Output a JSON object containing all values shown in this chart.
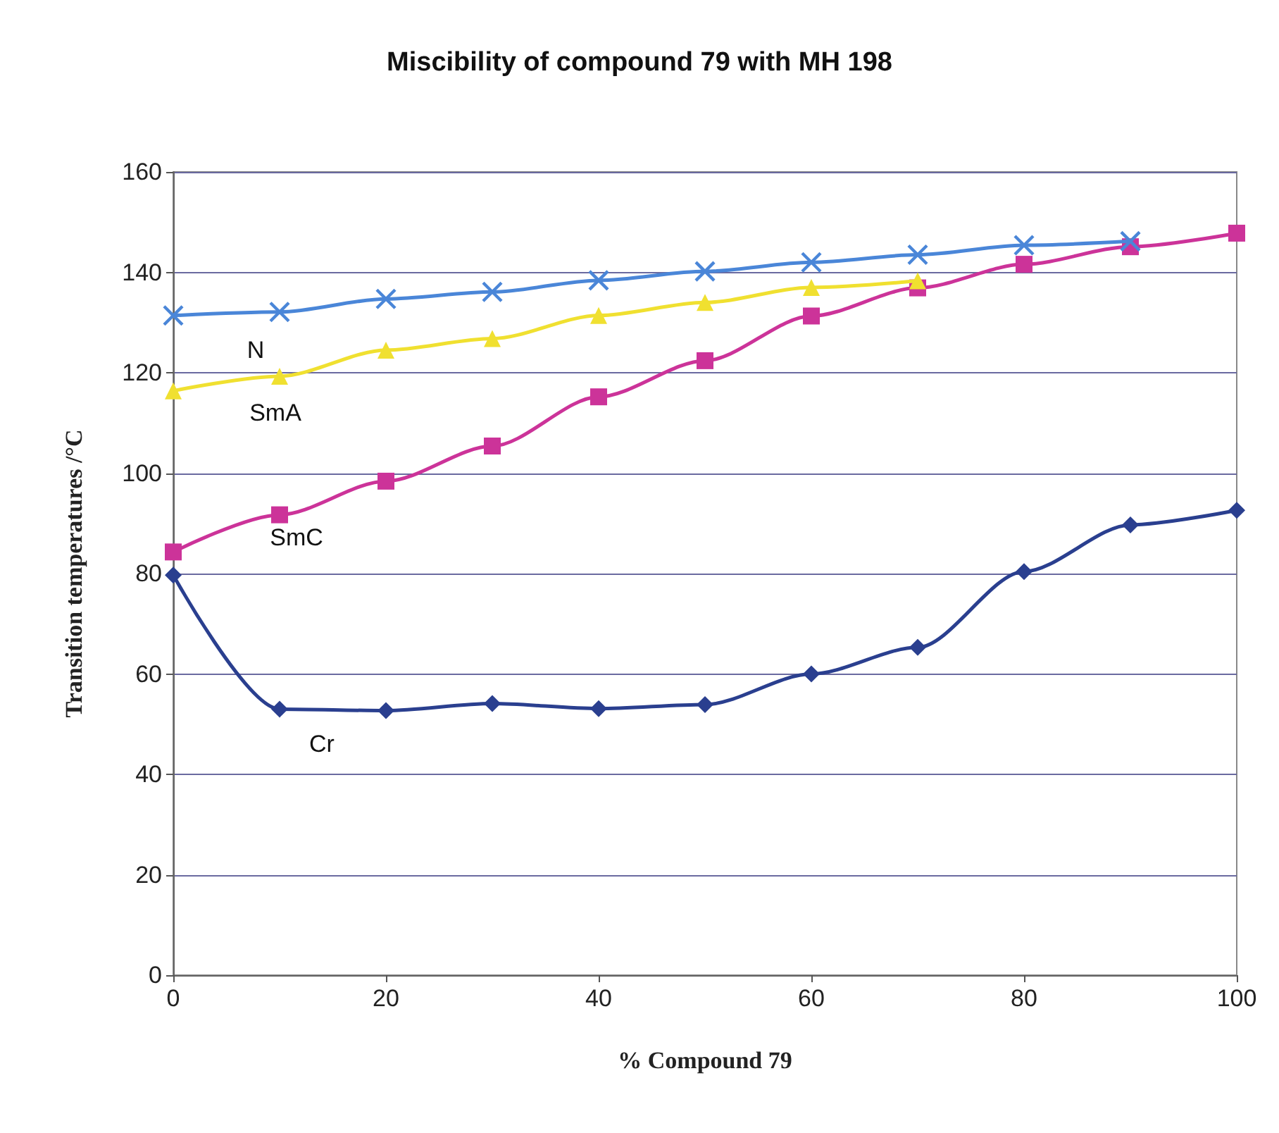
{
  "chart_data": {
    "type": "line",
    "title": "Miscibility of compound 79 with MH 198",
    "xlabel": "% Compound 79",
    "ylabel": "Transition temperatures /°C",
    "xlim": [
      0,
      100
    ],
    "xticks": [
      0,
      20,
      40,
      60,
      80,
      100
    ],
    "ylim": [
      0,
      160
    ],
    "yticks": [
      0,
      20,
      40,
      60,
      80,
      100,
      120,
      140,
      160
    ],
    "grid": "y",
    "series": [
      {
        "name": "N",
        "color": "#4a86d8",
        "marker": "cross",
        "x": [
          0,
          10,
          20,
          30,
          40,
          50,
          60,
          70,
          80,
          90
        ],
        "values": [
          131.4,
          132.1,
          134.7,
          136.1,
          138.4,
          140.2,
          142.0,
          143.5,
          145.4,
          146.2
        ]
      },
      {
        "name": "SmA",
        "color": "#f0e030",
        "marker": "triangle",
        "x": [
          0,
          10,
          20,
          30,
          40,
          50,
          60,
          70
        ],
        "values": [
          116.4,
          119.3,
          124.5,
          126.8,
          131.4,
          134.0,
          137.0,
          138.3
        ]
      },
      {
        "name": "SmC",
        "color": "#cc3399",
        "marker": "square",
        "x": [
          0,
          10,
          20,
          30,
          40,
          50,
          60,
          70,
          80,
          90,
          100
        ],
        "values": [
          84.3,
          91.7,
          98.4,
          105.4,
          115.2,
          122.4,
          131.3,
          136.9,
          141.6,
          145.1,
          147.8
        ]
      },
      {
        "name": "Cr",
        "color": "#2a3f8f",
        "marker": "diamond",
        "x": [
          0,
          10,
          20,
          30,
          40,
          50,
          60,
          70,
          80,
          90,
          100
        ],
        "values": [
          79.7,
          53.0,
          52.7,
          54.1,
          53.1,
          53.9,
          60.0,
          65.3,
          80.4,
          89.7,
          92.6
        ]
      }
    ]
  }
}
